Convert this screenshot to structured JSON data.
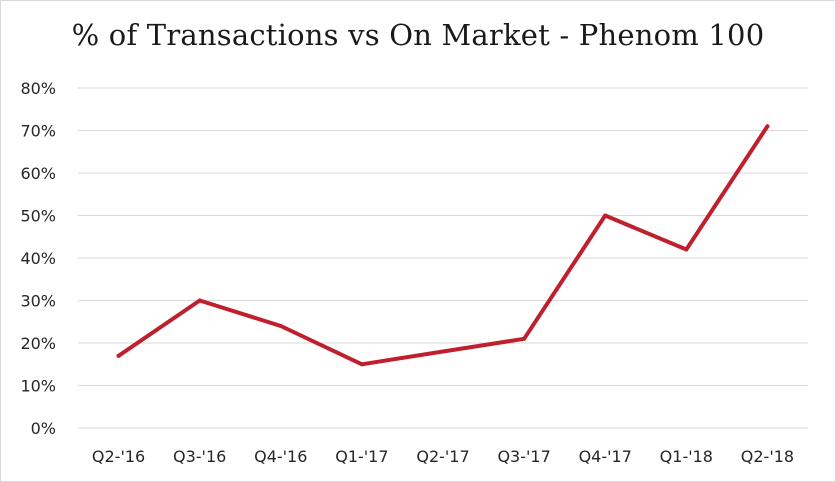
{
  "chart_data": {
    "type": "line",
    "title": "% of Transactions vs On Market - Phenom 100",
    "xlabel": "",
    "ylabel": "",
    "categories": [
      "Q2-'16",
      "Q3-'16",
      "Q4-'16",
      "Q1-'17",
      "Q2-'17",
      "Q3-'17",
      "Q4-'17",
      "Q1-'18",
      "Q2-'18"
    ],
    "series": [
      {
        "values": [
          17,
          30,
          24,
          15,
          18,
          21,
          50,
          42,
          71
        ]
      }
    ],
    "ylim": [
      0,
      80
    ],
    "yticks": [
      "0%",
      "10%",
      "20%",
      "30%",
      "40%",
      "50%",
      "60%",
      "70%",
      "80%"
    ],
    "grid": true,
    "legend": "none",
    "line_color": "#c0202e",
    "grid_color": "#d9d9d9"
  }
}
